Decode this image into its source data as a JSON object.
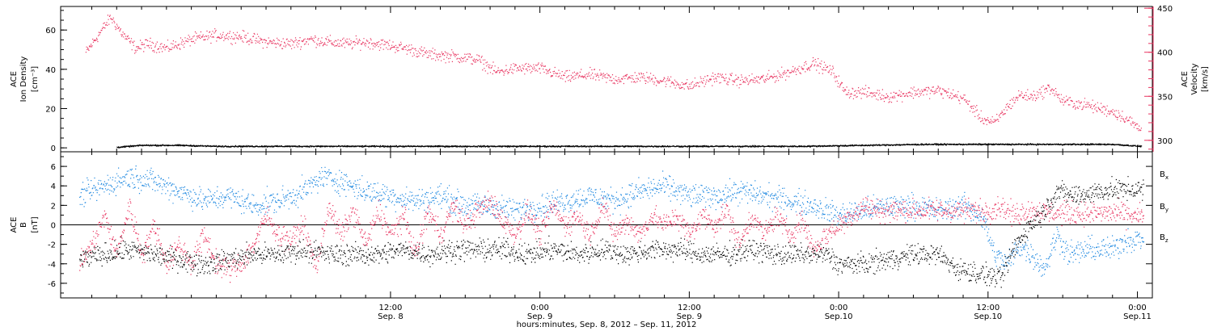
{
  "colors": {
    "axis": "#000000",
    "density": "#000000",
    "velocity": "#e8335f",
    "bx": "#000000",
    "by": "#1e88e0",
    "bz": "#e8335f"
  },
  "xaxis": {
    "hours_label": "hours:minutes, Sep.  8, 2012 – Sep. 11, 2012",
    "range_hours": [
      -14.5,
      73.2
    ],
    "ticks": [
      {
        "hour": 12,
        "time": "12:00",
        "date": "Sep. 8"
      },
      {
        "hour": 24,
        "time": "0:00",
        "date": "Sep. 9"
      },
      {
        "hour": 36,
        "time": "12:00",
        "date": "Sep. 9"
      },
      {
        "hour": 48,
        "time": "0:00",
        "date": "Sep.10"
      },
      {
        "hour": 60,
        "time": "12:00",
        "date": "Sep.10"
      },
      {
        "hour": 72,
        "time": "0:00",
        "date": "Sep.11"
      }
    ]
  },
  "chart_data": [
    {
      "type": "scatter",
      "panel": "top",
      "left_ylabel": {
        "line1": "ACE",
        "line2": "Ion Density",
        "line3": "[cm⁻³]"
      },
      "right_ylabel": {
        "line1": "ACE",
        "line2": "Velocity",
        "line3": "[km/s]"
      },
      "left_ylim": [
        -2,
        72
      ],
      "left_ticks": [
        0,
        20,
        40,
        60
      ],
      "right_ylim": [
        287,
        452
      ],
      "right_ticks": [
        300,
        350,
        400,
        450
      ],
      "series": [
        {
          "key": "density",
          "axis": "left",
          "color": "#000000",
          "scatter": 0.5,
          "points": [
            [
              -10,
              0.5
            ],
            [
              -8,
              1.5
            ],
            [
              -5,
              1.5
            ],
            [
              -2,
              1
            ],
            [
              0,
              1
            ],
            [
              5,
              1
            ],
            [
              10,
              1
            ],
            [
              15,
              1
            ],
            [
              20,
              1
            ],
            [
              25,
              1
            ],
            [
              30,
              1
            ],
            [
              35,
              1
            ],
            [
              40,
              1
            ],
            [
              45,
              1
            ],
            [
              50,
              1.5
            ],
            [
              55,
              2
            ],
            [
              60,
              2
            ],
            [
              65,
              2
            ],
            [
              70,
              2
            ],
            [
              72.3,
              1
            ]
          ]
        },
        {
          "key": "velocity",
          "axis": "right",
          "color": "#e8335f",
          "scatter": 10,
          "points": [
            [
              -12.5,
              400
            ],
            [
              -11.5,
              420
            ],
            [
              -10.5,
              440
            ],
            [
              -9.5,
              420
            ],
            [
              -8.5,
              405
            ],
            [
              -7.5,
              410
            ],
            [
              -6,
              405
            ],
            [
              -4,
              415
            ],
            [
              -2,
              420
            ],
            [
              0,
              418
            ],
            [
              2,
              412
            ],
            [
              4,
              410
            ],
            [
              5.5,
              415
            ],
            [
              7,
              412
            ],
            [
              8.5,
              410
            ],
            [
              10,
              412
            ],
            [
              12,
              408
            ],
            [
              13.5,
              404
            ],
            [
              15,
              398
            ],
            [
              17,
              396
            ],
            [
              19,
              392
            ],
            [
              20.5,
              378
            ],
            [
              22,
              382
            ],
            [
              24,
              382
            ],
            [
              26,
              372
            ],
            [
              28,
              375
            ],
            [
              30,
              370
            ],
            [
              32,
              372
            ],
            [
              34,
              368
            ],
            [
              36,
              362
            ],
            [
              38,
              372
            ],
            [
              40,
              368
            ],
            [
              42,
              370
            ],
            [
              44,
              378
            ],
            [
              46,
              388
            ],
            [
              47.5,
              378
            ],
            [
              48.5,
              355
            ],
            [
              50,
              355
            ],
            [
              52,
              350
            ],
            [
              54,
              355
            ],
            [
              56,
              357
            ],
            [
              58,
              348
            ],
            [
              59.5,
              325
            ],
            [
              60.5,
              320
            ],
            [
              61.5,
              338
            ],
            [
              62.5,
              352
            ],
            [
              63.5,
              350
            ],
            [
              65,
              360
            ],
            [
              66,
              345
            ],
            [
              68,
              340
            ],
            [
              70,
              333
            ],
            [
              71,
              326
            ],
            [
              72.3,
              312
            ]
          ]
        }
      ]
    },
    {
      "type": "scatter",
      "panel": "bottom",
      "left_ylabel": {
        "line1": "ACE",
        "line2": "B",
        "line3": "[nT]"
      },
      "ylim": [
        -7.5,
        7.5
      ],
      "y_ticks": [
        -6,
        -4,
        -2,
        0,
        2,
        4,
        6
      ],
      "zero_line": true,
      "legend": [
        {
          "label": "B",
          "sub": "x",
          "color": "#000000"
        },
        {
          "label": "B",
          "sub": "y",
          "color": "#1e88e0"
        },
        {
          "label": "B",
          "sub": "z",
          "color": "#e8335f"
        }
      ],
      "series": [
        {
          "key": "bx",
          "color": "#000000",
          "scatter": 1.6,
          "points": [
            [
              -13,
              -3.5
            ],
            [
              -11,
              -3
            ],
            [
              -9,
              -2.5
            ],
            [
              -7,
              -3
            ],
            [
              -5,
              -3.5
            ],
            [
              -3,
              -4
            ],
            [
              -1,
              -3.5
            ],
            [
              1,
              -3
            ],
            [
              3,
              -3
            ],
            [
              5,
              -2.5
            ],
            [
              7,
              -3
            ],
            [
              9,
              -3
            ],
            [
              11,
              -3
            ],
            [
              13,
              -2.5
            ],
            [
              15,
              -3
            ],
            [
              17,
              -2.5
            ],
            [
              19,
              -2.5
            ],
            [
              21,
              -2.5
            ],
            [
              23,
              -3
            ],
            [
              25,
              -2.5
            ],
            [
              27,
              -3
            ],
            [
              29,
              -2.5
            ],
            [
              31,
              -3
            ],
            [
              33,
              -2.5
            ],
            [
              35,
              -2.5
            ],
            [
              37,
              -3
            ],
            [
              39,
              -3
            ],
            [
              41,
              -2.5
            ],
            [
              43,
              -3
            ],
            [
              45,
              -3
            ],
            [
              47,
              -3
            ],
            [
              48,
              -4
            ],
            [
              50,
              -4
            ],
            [
              52,
              -3.5
            ],
            [
              54,
              -3
            ],
            [
              56,
              -3
            ],
            [
              57.5,
              -4.5
            ],
            [
              59.5,
              -5
            ],
            [
              61,
              -5.5
            ],
            [
              62,
              -2.5
            ],
            [
              63,
              -0.5
            ],
            [
              64.5,
              1.5
            ],
            [
              65.5,
              3.5
            ],
            [
              67,
              3
            ],
            [
              69,
              3.5
            ],
            [
              71,
              3.7
            ],
            [
              72.5,
              3.6
            ]
          ]
        },
        {
          "key": "by",
          "color": "#1e88e0",
          "scatter": 1.8,
          "points": [
            [
              -13,
              3
            ],
            [
              -11,
              4
            ],
            [
              -9,
              5
            ],
            [
              -7,
              4.5
            ],
            [
              -5,
              3.5
            ],
            [
              -3,
              2.5
            ],
            [
              -1,
              3
            ],
            [
              1,
              2
            ],
            [
              3,
              2.5
            ],
            [
              5,
              3.5
            ],
            [
              6.5,
              5
            ],
            [
              8,
              4.5
            ],
            [
              10,
              3.5
            ],
            [
              12,
              3
            ],
            [
              14,
              2.5
            ],
            [
              16,
              3
            ],
            [
              18,
              2
            ],
            [
              20,
              2
            ],
            [
              22,
              1.5
            ],
            [
              24,
              2
            ],
            [
              26,
              2.5
            ],
            [
              28,
              3
            ],
            [
              30,
              2.5
            ],
            [
              32,
              3.5
            ],
            [
              34,
              4
            ],
            [
              36,
              3
            ],
            [
              38,
              3
            ],
            [
              40,
              3.5
            ],
            [
              42,
              3
            ],
            [
              44,
              2.5
            ],
            [
              46,
              2
            ],
            [
              48,
              1
            ],
            [
              50,
              1.5
            ],
            [
              52,
              2
            ],
            [
              54,
              2
            ],
            [
              56,
              1.5
            ],
            [
              58,
              2
            ],
            [
              59.5,
              1
            ],
            [
              60.5,
              -3
            ],
            [
              61.5,
              -4
            ],
            [
              62.5,
              -2
            ],
            [
              63.5,
              -3
            ],
            [
              64.5,
              -4.5
            ],
            [
              65.5,
              -1
            ],
            [
              66.5,
              -3
            ],
            [
              68,
              -2.5
            ],
            [
              70,
              -2.5
            ],
            [
              71,
              -1.5
            ],
            [
              72.5,
              -1.5
            ]
          ]
        },
        {
          "key": "bz",
          "color": "#e8335f",
          "scatter": 1.7,
          "points": [
            [
              -13,
              -4
            ],
            [
              -12,
              -2
            ],
            [
              -11,
              1
            ],
            [
              -10,
              -3
            ],
            [
              -9,
              2
            ],
            [
              -8,
              -3
            ],
            [
              -7,
              0
            ],
            [
              -6,
              -4
            ],
            [
              -5,
              -2
            ],
            [
              -4,
              -4
            ],
            [
              -3,
              -1
            ],
            [
              -2,
              -4
            ],
            [
              -1,
              -4.5
            ],
            [
              0,
              -4
            ],
            [
              1,
              -2
            ],
            [
              2,
              1
            ],
            [
              3,
              -1
            ],
            [
              4,
              -1.5
            ],
            [
              5,
              0
            ],
            [
              6,
              -4.5
            ],
            [
              7,
              2
            ],
            [
              8,
              -1
            ],
            [
              9,
              1.5
            ],
            [
              10,
              -2
            ],
            [
              11,
              1.5
            ],
            [
              12,
              -1
            ],
            [
              13,
              1
            ],
            [
              14,
              -3
            ],
            [
              15,
              1.5
            ],
            [
              16,
              -1
            ],
            [
              17,
              2
            ],
            [
              18,
              0
            ],
            [
              19,
              1.5
            ],
            [
              20,
              2.5
            ],
            [
              21,
              0.5
            ],
            [
              22,
              -1
            ],
            [
              23,
              1.5
            ],
            [
              24,
              -1
            ],
            [
              25,
              2
            ],
            [
              26,
              0
            ],
            [
              27,
              1
            ],
            [
              28,
              -1
            ],
            [
              29,
              2
            ],
            [
              30,
              -1
            ],
            [
              31,
              0.5
            ],
            [
              32,
              -1
            ],
            [
              33,
              1
            ],
            [
              34,
              0
            ],
            [
              35,
              1
            ],
            [
              36,
              -1
            ],
            [
              37,
              1
            ],
            [
              38,
              0
            ],
            [
              39,
              1.5
            ],
            [
              40,
              -2
            ],
            [
              41,
              1
            ],
            [
              42,
              -1
            ],
            [
              43,
              1
            ],
            [
              44,
              -1
            ],
            [
              45,
              0.5
            ],
            [
              46,
              -2.5
            ],
            [
              47,
              -1
            ],
            [
              48,
              0
            ],
            [
              49,
              1
            ],
            [
              50,
              2
            ],
            [
              51,
              1.5
            ],
            [
              52,
              1.5
            ],
            [
              53,
              1.5
            ],
            [
              54,
              1.5
            ],
            [
              55,
              1.5
            ],
            [
              56,
              1.5
            ],
            [
              57,
              1.5
            ],
            [
              58,
              1.5
            ],
            [
              59,
              1.5
            ],
            [
              60,
              1.5
            ],
            [
              61,
              2
            ],
            [
              62,
              1
            ],
            [
              63,
              1.5
            ],
            [
              64,
              1.5
            ],
            [
              65,
              1.2
            ],
            [
              66,
              1.3
            ],
            [
              68,
              1.2
            ],
            [
              70,
              1.3
            ],
            [
              72.5,
              0.8
            ]
          ]
        }
      ]
    }
  ]
}
